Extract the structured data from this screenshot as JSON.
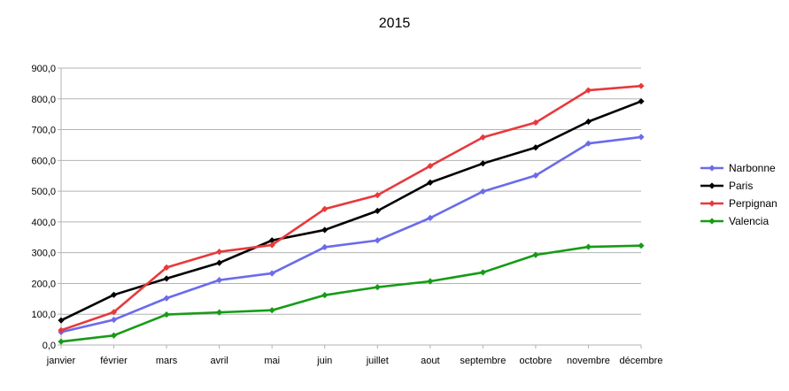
{
  "chart_data": {
    "type": "line",
    "title": "2015",
    "xlabel": "",
    "ylabel": "",
    "ylim": [
      0,
      900
    ],
    "y_ticks": [
      "0,0",
      "100,0",
      "200,0",
      "300,0",
      "400,0",
      "500,0",
      "600,0",
      "700,0",
      "800,0",
      "900,0"
    ],
    "grid": true,
    "legend_position": "right",
    "categories": [
      "janvier",
      "février",
      "mars",
      "avril",
      "mai",
      "juin",
      "juillet",
      "aout",
      "septembre",
      "octobre",
      "novembre",
      "décembre"
    ],
    "series": [
      {
        "name": "Narbonne",
        "color": "#6b6bea",
        "values": [
          42,
          82,
          152,
          211,
          233,
          318,
          340,
          413,
          499,
          551,
          655,
          676
        ]
      },
      {
        "name": "Paris",
        "color": "#000000",
        "values": [
          80,
          163,
          216,
          267,
          340,
          374,
          436,
          528,
          590,
          642,
          726,
          792
        ]
      },
      {
        "name": "Perpignan",
        "color": "#e8393b",
        "values": [
          48,
          107,
          252,
          303,
          325,
          442,
          487,
          582,
          675,
          723,
          828,
          842
        ]
      },
      {
        "name": "Valencia",
        "color": "#169b16",
        "values": [
          11,
          31,
          99,
          106,
          113,
          162,
          188,
          207,
          236,
          293,
          319,
          323
        ]
      }
    ]
  }
}
